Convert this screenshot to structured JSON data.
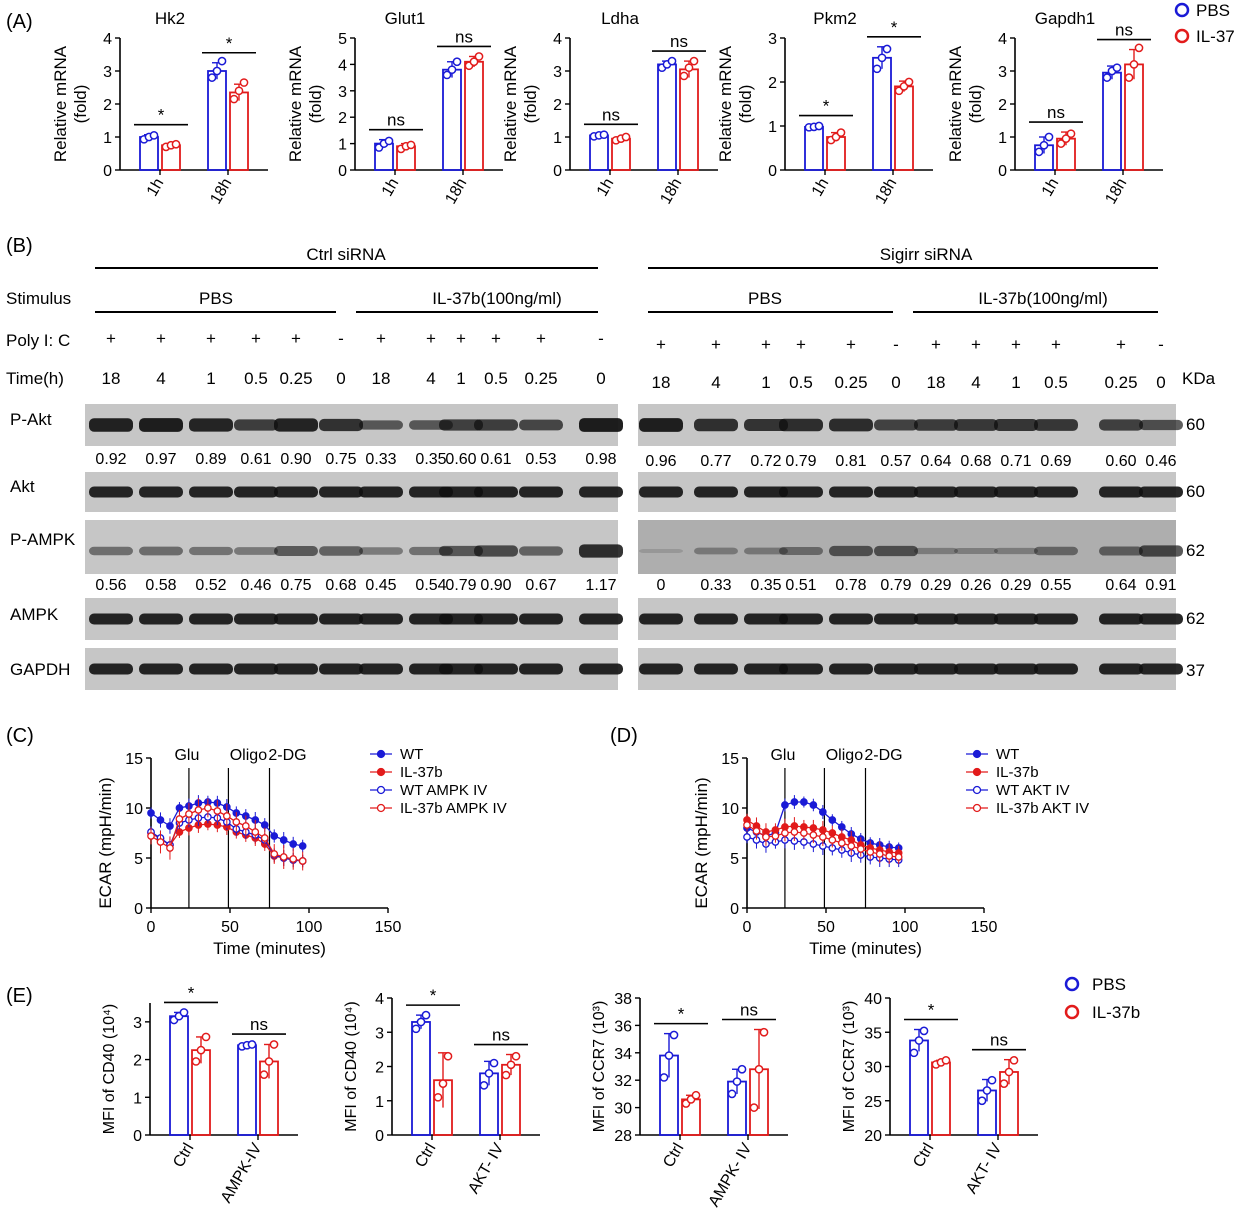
{
  "panel_labels": {
    "A": "(A)",
    "B": "(B)",
    "C": "(C)",
    "D": "(D)",
    "E": "(E)"
  },
  "colors": {
    "pbs": "#1a1ad6",
    "il37": "#e21b1b"
  },
  "panel_a": {
    "legend": [
      "PBS",
      "IL-37"
    ],
    "ylabel": "Relative mRNA (fold)",
    "charts": [
      {
        "title": "Hk2",
        "ymax": 4,
        "ticks": [
          0,
          1,
          2,
          3,
          4
        ],
        "categories": [
          "1h",
          "18h"
        ],
        "series": [
          {
            "name": "PBS",
            "values": [
              1.0,
              3.0
            ],
            "err": [
              0.07,
              0.25
            ],
            "pts": [
              [
                0.93,
                1.0,
                1.05
              ],
              [
                2.8,
                3.0,
                3.3
              ]
            ]
          },
          {
            "name": "IL-37",
            "values": [
              0.75,
              2.35
            ],
            "err": [
              0.05,
              0.25
            ],
            "pts": [
              [
                0.7,
                0.75,
                0.78
              ],
              [
                2.15,
                2.4,
                2.65
              ]
            ]
          }
        ],
        "sig": [
          "*",
          "*"
        ]
      },
      {
        "title": "Glut1",
        "ymax": 5,
        "ticks": [
          0,
          1,
          2,
          3,
          4,
          5
        ],
        "categories": [
          "1h",
          "18h"
        ],
        "series": [
          {
            "name": "PBS",
            "values": [
              1.0,
              3.8
            ],
            "err": [
              0.15,
              0.3
            ],
            "pts": [
              [
                0.85,
                1.0,
                1.1
              ],
              [
                3.6,
                3.8,
                4.1
              ]
            ]
          },
          {
            "name": "IL-37",
            "values": [
              0.9,
              4.1
            ],
            "err": [
              0.1,
              0.2
            ],
            "pts": [
              [
                0.8,
                0.9,
                0.95
              ],
              [
                3.95,
                4.1,
                4.3
              ]
            ]
          }
        ],
        "sig": [
          "ns",
          "ns"
        ]
      },
      {
        "title": "Ldha",
        "ymax": 4,
        "ticks": [
          0,
          1,
          2,
          3,
          4
        ],
        "categories": [
          "1h",
          "18h"
        ],
        "series": [
          {
            "name": "PBS",
            "values": [
              1.05,
              3.2
            ],
            "err": [
              0.03,
              0.1
            ],
            "pts": [
              [
                1.02,
                1.05,
                1.07
              ],
              [
                3.1,
                3.2,
                3.3
              ]
            ]
          },
          {
            "name": "IL-37",
            "values": [
              0.95,
              3.05
            ],
            "err": [
              0.05,
              0.25
            ],
            "pts": [
              [
                0.9,
                0.95,
                1.0
              ],
              [
                2.85,
                3.1,
                3.3
              ]
            ]
          }
        ],
        "sig": [
          "ns",
          "ns"
        ]
      },
      {
        "title": "Pkm2",
        "ymax": 3,
        "ticks": [
          0,
          1,
          2,
          3
        ],
        "categories": [
          "1h",
          "18h"
        ],
        "series": [
          {
            "name": "PBS",
            "values": [
              0.98,
              2.55
            ],
            "err": [
              0.03,
              0.25
            ],
            "pts": [
              [
                0.97,
                0.98,
                1.0
              ],
              [
                2.3,
                2.55,
                2.75
              ]
            ]
          },
          {
            "name": "IL-37",
            "values": [
              0.75,
              1.9
            ],
            "err": [
              0.1,
              0.12
            ],
            "pts": [
              [
                0.68,
                0.75,
                0.85
              ],
              [
                1.8,
                1.9,
                2.0
              ]
            ]
          }
        ],
        "sig": [
          "*",
          "*"
        ]
      },
      {
        "title": "Gapdh1",
        "ymax": 4,
        "ticks": [
          0,
          1,
          2,
          3,
          4
        ],
        "categories": [
          "1h",
          "18h"
        ],
        "series": [
          {
            "name": "PBS",
            "values": [
              0.75,
              2.95
            ],
            "err": [
              0.25,
              0.2
            ],
            "pts": [
              [
                0.55,
                0.75,
                1.0
              ],
              [
                2.8,
                3.0,
                3.1
              ]
            ]
          },
          {
            "name": "IL-37",
            "values": [
              0.95,
              3.2
            ],
            "err": [
              0.2,
              0.45
            ],
            "pts": [
              [
                0.8,
                0.95,
                1.1
              ],
              [
                2.8,
                3.2,
                3.7
              ]
            ]
          }
        ],
        "sig": [
          "ns",
          "ns"
        ]
      }
    ]
  },
  "panel_b": {
    "group_left": "Ctrl siRNA",
    "group_right": "Sigirr siRNA",
    "stimulus_label": "Stimulus",
    "stim_pbs": "PBS",
    "stim_il37": "IL-37b(100ng/ml)",
    "polyic_label": "Poly I: C",
    "time_label": "Time(h)",
    "kda_label": "KDa",
    "polyic": [
      "+",
      "+",
      "+",
      "+",
      "+",
      "-",
      "+",
      "+",
      "+",
      "+",
      "+",
      "-"
    ],
    "times": [
      "18",
      "4",
      "1",
      "0.5",
      "0.25",
      "0",
      "18",
      "4",
      "1",
      "0.5",
      "0.25",
      "0"
    ],
    "blots": [
      {
        "name": "P-Akt",
        "kda": "60"
      },
      {
        "name": "Akt",
        "kda": "60"
      },
      {
        "name": "P-AMPK",
        "kda": "62"
      },
      {
        "name": "AMPK",
        "kda": "62"
      },
      {
        "name": "GAPDH",
        "kda": "37"
      }
    ],
    "pakt_left": [
      "0.92",
      "0.97",
      "0.89",
      "0.61",
      "0.90",
      "0.75",
      "0.33",
      "0.35",
      "0.60",
      "0.61",
      "0.53",
      "0.98"
    ],
    "pakt_right": [
      "0.96",
      "0.77",
      "0.72",
      "0.79",
      "0.81",
      "0.57",
      "0.64",
      "0.68",
      "0.71",
      "0.69",
      "0.60",
      "0.46"
    ],
    "pampk_left": [
      "0.56",
      "0.58",
      "0.52",
      "0.46",
      "0.75",
      "0.68",
      "0.45",
      "0.54",
      "0.79",
      "0.90",
      "0.67",
      "1.17"
    ],
    "pampk_right": [
      "0",
      "0.33",
      "0.35",
      "0.51",
      "0.78",
      "0.79",
      "0.29",
      "0.26",
      "0.29",
      "0.55",
      "0.64",
      "0.91"
    ]
  },
  "panel_cd": {
    "ylabel": "ECAR (mpH/min)",
    "xlabel": "Time (minutes)",
    "xticks": [
      0,
      50,
      100,
      150
    ],
    "yticks": [
      0,
      5,
      10,
      15
    ],
    "injections": [
      {
        "label": "Glu",
        "x": 24
      },
      {
        "label": "Oligo",
        "x": 49
      },
      {
        "label": "2-DG",
        "x": 75
      }
    ],
    "x": [
      0,
      6,
      12,
      18,
      24,
      30,
      36,
      42,
      48,
      54,
      60,
      66,
      72,
      78,
      84,
      90,
      96
    ],
    "C": {
      "legend": [
        "WT",
        "IL-37b",
        "WT AMPK IV",
        "IL-37b AMPK IV"
      ],
      "series": [
        {
          "name": "WT",
          "filled": true,
          "color": "#1a1ad6",
          "values": [
            9.5,
            8.8,
            8.2,
            10.0,
            10.2,
            10.5,
            10.6,
            10.5,
            10.1,
            9.5,
            9.2,
            8.8,
            8.3,
            7.2,
            6.8,
            6.4,
            6.2
          ],
          "err": 0.8
        },
        {
          "name": "IL-37b",
          "filled": true,
          "color": "#e21b1b",
          "values": [
            7.5,
            6.9,
            6.3,
            7.6,
            8.0,
            8.3,
            8.4,
            8.3,
            8.1,
            7.6,
            7.3,
            7.0,
            6.4,
            5.2,
            5.0,
            4.8,
            4.7
          ],
          "err": 0.8
        },
        {
          "name": "WT AMPK IV",
          "filled": false,
          "color": "#1a1ad6",
          "values": [
            7.6,
            7.0,
            6.3,
            8.5,
            8.8,
            9.0,
            9.1,
            9.0,
            8.6,
            7.9,
            7.6,
            7.3,
            6.8,
            5.3,
            5.0,
            4.8,
            4.7
          ],
          "err": 0.8
        },
        {
          "name": "IL-37b AMPK IV",
          "filled": false,
          "color": "#e21b1b",
          "values": [
            7.2,
            6.6,
            6.0,
            8.9,
            9.4,
            9.8,
            10.0,
            9.7,
            9.2,
            8.6,
            8.2,
            7.6,
            7.0,
            5.4,
            5.1,
            4.9,
            4.7
          ],
          "err": 1.2
        }
      ]
    },
    "D": {
      "legend": [
        "WT",
        "IL-37b",
        "WT AKT IV",
        "IL-37b AKT IV"
      ],
      "series": [
        {
          "name": "WT",
          "filled": true,
          "color": "#1a1ad6",
          "values": [
            8.0,
            7.6,
            7.2,
            7.5,
            10.3,
            10.6,
            10.6,
            10.3,
            9.6,
            8.8,
            8.1,
            7.4,
            6.9,
            6.5,
            6.3,
            6.1,
            6.0
          ],
          "err": 0.7
        },
        {
          "name": "IL-37b",
          "filled": true,
          "color": "#e21b1b",
          "values": [
            8.8,
            8.2,
            7.6,
            7.8,
            8.1,
            8.2,
            8.1,
            8.0,
            7.8,
            7.5,
            7.1,
            6.8,
            6.3,
            6.0,
            5.8,
            5.6,
            5.5
          ],
          "err": 0.9
        },
        {
          "name": "WT AKT IV",
          "filled": false,
          "color": "#1a1ad6",
          "values": [
            7.1,
            6.8,
            6.4,
            6.6,
            6.8,
            6.7,
            6.6,
            6.4,
            6.2,
            6.0,
            5.8,
            5.5,
            5.3,
            5.1,
            5.0,
            4.9,
            4.8
          ],
          "err": 0.9
        },
        {
          "name": "IL-37b AKT IV",
          "filled": false,
          "color": "#e21b1b",
          "values": [
            8.3,
            7.7,
            7.1,
            7.2,
            7.5,
            7.6,
            7.5,
            7.3,
            7.1,
            6.8,
            6.5,
            6.2,
            5.9,
            5.6,
            5.4,
            5.2,
            5.1
          ],
          "err": 0.9
        }
      ]
    }
  },
  "panel_e": {
    "legend": [
      "PBS",
      "IL-37b"
    ],
    "charts": [
      {
        "ylabel": "MFI of CD40",
        "exp": "(10⁴)",
        "ymin": 0,
        "ymax": 3.5,
        "ticks": [
          0,
          1,
          2,
          3
        ],
        "categories": [
          "Ctrl",
          "AMPK-IV"
        ],
        "series": [
          {
            "name": "PBS",
            "values": [
              3.15,
              2.38
            ],
            "err": [
              0.1,
              0.03
            ],
            "pts": [
              [
                3.05,
                3.15,
                3.25
              ],
              [
                2.35,
                2.38,
                2.4
              ]
            ]
          },
          {
            "name": "IL-37b",
            "values": [
              2.25,
              1.95
            ],
            "err": [
              0.35,
              0.45
            ],
            "pts": [
              [
                1.95,
                2.25,
                2.6
              ],
              [
                1.6,
                1.95,
                2.4
              ]
            ]
          }
        ],
        "sig": [
          "*",
          "ns"
        ]
      },
      {
        "ylabel": "MFI of CD40",
        "exp": "(10⁴)",
        "ymin": 0,
        "ymax": 4,
        "ticks": [
          0,
          1,
          2,
          3,
          4
        ],
        "categories": [
          "Ctrl",
          "AKT- IV"
        ],
        "series": [
          {
            "name": "PBS",
            "values": [
              3.3,
              1.8
            ],
            "err": [
              0.2,
              0.35
            ],
            "pts": [
              [
                3.1,
                3.3,
                3.5
              ],
              [
                1.45,
                1.8,
                2.1
              ]
            ]
          },
          {
            "name": "IL-37b",
            "values": [
              1.6,
              2.05
            ],
            "err": [
              0.8,
              0.3
            ],
            "pts": [
              [
                1.1,
                1.5,
                2.3
              ],
              [
                1.75,
                2.05,
                2.3
              ]
            ]
          }
        ],
        "sig": [
          "*",
          "ns"
        ]
      },
      {
        "ylabel": "MFI of CCR7",
        "exp": "(10³)",
        "ymin": 28,
        "ymax": 38,
        "ticks": [
          28,
          30,
          32,
          34,
          36,
          38
        ],
        "categories": [
          "Ctrl",
          "AMPK- IV"
        ],
        "series": [
          {
            "name": "PBS",
            "values": [
              33.8,
              31.9
            ],
            "err": [
              1.6,
              0.9
            ],
            "pts": [
              [
                32.2,
                33.8,
                35.3
              ],
              [
                31.0,
                31.9,
                32.8
              ]
            ]
          },
          {
            "name": "IL-37b",
            "values": [
              30.6,
              32.8
            ],
            "err": [
              0.3,
              2.9
            ],
            "pts": [
              [
                30.3,
                30.6,
                30.9
              ],
              [
                30.0,
                32.8,
                35.5
              ]
            ]
          }
        ],
        "sig": [
          "*",
          "ns"
        ]
      },
      {
        "ylabel": "MFI of CCR7",
        "exp": "(10³)",
        "ymin": 20,
        "ymax": 40,
        "ticks": [
          20,
          25,
          30,
          35,
          40
        ],
        "categories": [
          "Ctrl",
          "AKT- IV"
        ],
        "series": [
          {
            "name": "PBS",
            "values": [
              33.8,
              26.5
            ],
            "err": [
              1.6,
              1.6
            ],
            "pts": [
              [
                32.0,
                33.8,
                35.2
              ],
              [
                25.0,
                26.5,
                28.0
              ]
            ]
          },
          {
            "name": "IL-37b",
            "values": [
              30.6,
              29.2
            ],
            "err": [
              0.3,
              1.8
            ],
            "pts": [
              [
                30.3,
                30.6,
                30.9
              ],
              [
                27.5,
                29.2,
                30.9
              ]
            ]
          }
        ],
        "sig": [
          "*",
          "ns"
        ]
      }
    ]
  }
}
